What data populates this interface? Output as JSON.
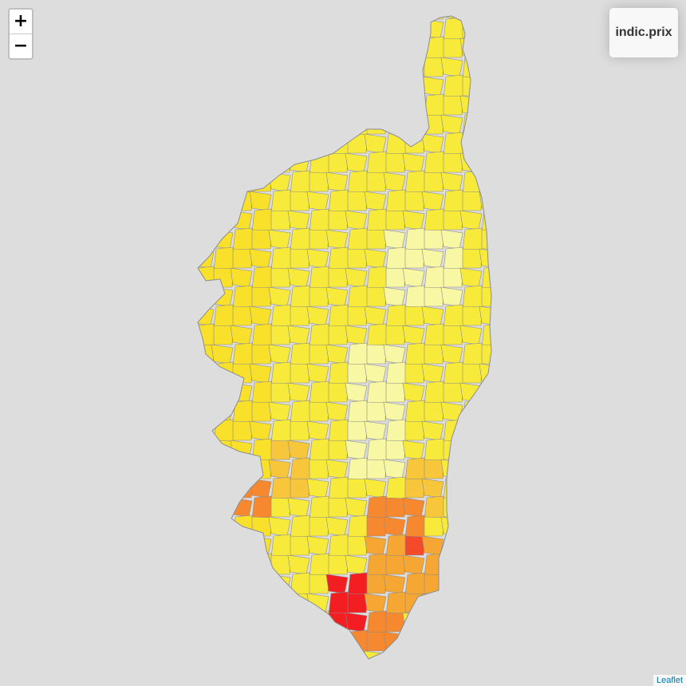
{
  "map": {
    "zoom_in_label": "+",
    "zoom_out_label": "−",
    "legend_title": "indic.prix",
    "attribution_link": "Leaflet"
  },
  "colors": {
    "background": "#dddddd",
    "border": "#8c8c8c",
    "scale": [
      "#fcfce6",
      "#f7f7a4",
      "#faf27a",
      "#f7ea3a",
      "#f9e02a",
      "#f7c63a",
      "#f6a632",
      "#f6882f",
      "#f44a2b",
      "#f21e22"
    ]
  }
}
